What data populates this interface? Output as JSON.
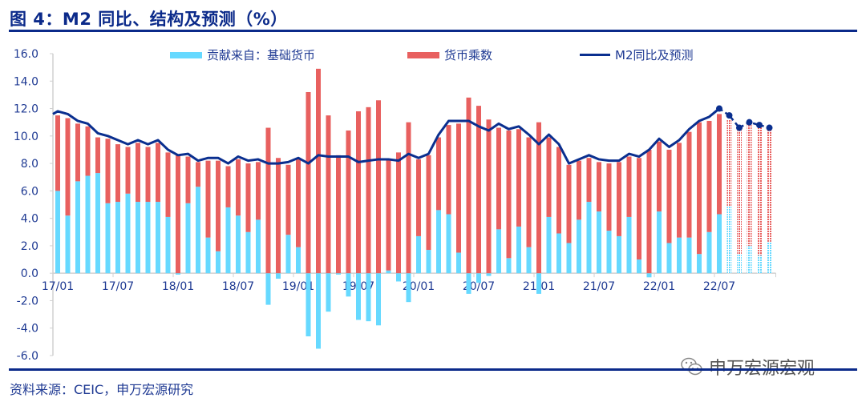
{
  "title": "图 4：M2 同比、结构及预测（%）",
  "source": "资料来源：CEIC，申万宏源研究",
  "watermark": "申万宏源宏观",
  "colors": {
    "base": "#66D9FF",
    "multiplier": "#E8605F",
    "line": "#0A2F8F",
    "text": "#1F3A93"
  },
  "chart_data": {
    "type": "bar",
    "stacked": true,
    "title": "M2 同比、结构及预测（%）",
    "xlabel": "",
    "ylabel": "%",
    "ylim": [
      -6,
      16
    ],
    "yticks": [
      "16.0",
      "14.0",
      "12.0",
      "10.0",
      "8.0",
      "6.0",
      "4.0",
      "2.0",
      "0.0",
      "-2.0",
      "-4.0",
      "-6.0"
    ],
    "xtick_labels": [
      "17/01",
      "17/07",
      "18/01",
      "18/07",
      "19/01",
      "19/07",
      "20/01",
      "20/07",
      "21/01",
      "21/07",
      "22/01",
      "22/07"
    ],
    "period": "2017-01 to 2022-12 monthly",
    "forecast_start_index": 67,
    "legend": {
      "base": "贡献来自：基础货币",
      "multiplier": "货币乘数",
      "line": "M2同比及预测",
      "placement": "top"
    },
    "series": [
      {
        "name": "贡献来自：基础货币",
        "type": "bar",
        "values": [
          6.0,
          4.2,
          6.7,
          7.1,
          7.3,
          5.1,
          5.2,
          5.8,
          5.2,
          5.2,
          5.2,
          4.1,
          -0.1,
          5.1,
          6.3,
          2.6,
          1.6,
          4.8,
          4.2,
          3.0,
          3.9,
          -2.3,
          -0.4,
          2.8,
          1.9,
          -4.6,
          -5.5,
          -2.8,
          -0.1,
          -1.7,
          -3.4,
          -3.5,
          -3.8,
          0.2,
          -0.6,
          -2.1,
          2.7,
          1.7,
          4.6,
          4.3,
          1.5,
          -1.5,
          -0.7,
          -0.2,
          3.2,
          1.1,
          3.4,
          1.9,
          -1.5,
          4.1,
          2.9,
          2.2,
          3.9,
          5.2,
          4.5,
          3.1,
          2.7,
          4.1,
          1.0,
          -0.3,
          4.5,
          2.2,
          2.6,
          2.6,
          1.4,
          3.0,
          4.3,
          4.9,
          1.4,
          2.0,
          1.3,
          2.3
        ]
      },
      {
        "name": "货币乘数",
        "type": "bar",
        "values": [
          5.5,
          7.1,
          4.2,
          3.6,
          2.6,
          4.7,
          4.2,
          3.4,
          4.3,
          4.0,
          4.3,
          4.7,
          8.6,
          3.4,
          1.8,
          5.6,
          6.6,
          3.0,
          4.1,
          5.0,
          4.2,
          10.6,
          8.4,
          5.1,
          6.4,
          13.2,
          14.9,
          11.5,
          8.6,
          10.4,
          11.8,
          12.1,
          12.6,
          8.1,
          8.8,
          11.0,
          5.6,
          6.9,
          5.3,
          6.5,
          9.4,
          12.8,
          12.2,
          11.2,
          7.4,
          9.3,
          7.1,
          8.0,
          11.0,
          5.8,
          6.3,
          5.7,
          4.3,
          3.2,
          3.6,
          4.9,
          5.4,
          4.4,
          7.4,
          9.0,
          5.1,
          6.8,
          6.9,
          7.7,
          9.6,
          8.1,
          7.3,
          6.3,
          9.0,
          8.8,
          9.4,
          8.1
        ]
      },
      {
        "name": "M2同比及预测",
        "type": "line",
        "values": [
          11.8,
          11.6,
          11.1,
          10.9,
          10.2,
          10.0,
          9.7,
          9.4,
          9.7,
          9.4,
          9.7,
          9.0,
          8.6,
          8.7,
          8.2,
          8.4,
          8.4,
          8.0,
          8.5,
          8.2,
          8.3,
          8.0,
          8.0,
          8.1,
          8.4,
          8.0,
          8.6,
          8.5,
          8.5,
          8.5,
          8.1,
          8.2,
          8.3,
          8.3,
          8.2,
          8.7,
          8.4,
          8.7,
          10.1,
          11.1,
          11.1,
          11.1,
          10.7,
          10.4,
          10.9,
          10.5,
          10.7,
          10.1,
          9.4,
          10.1,
          9.4,
          8.0,
          8.3,
          8.6,
          8.3,
          8.2,
          8.2,
          8.7,
          8.5,
          9.0,
          9.8,
          9.2,
          9.7,
          10.5,
          11.1,
          11.4,
          12.0,
          11.5,
          10.6,
          11.0,
          10.8,
          10.6
        ]
      }
    ]
  }
}
